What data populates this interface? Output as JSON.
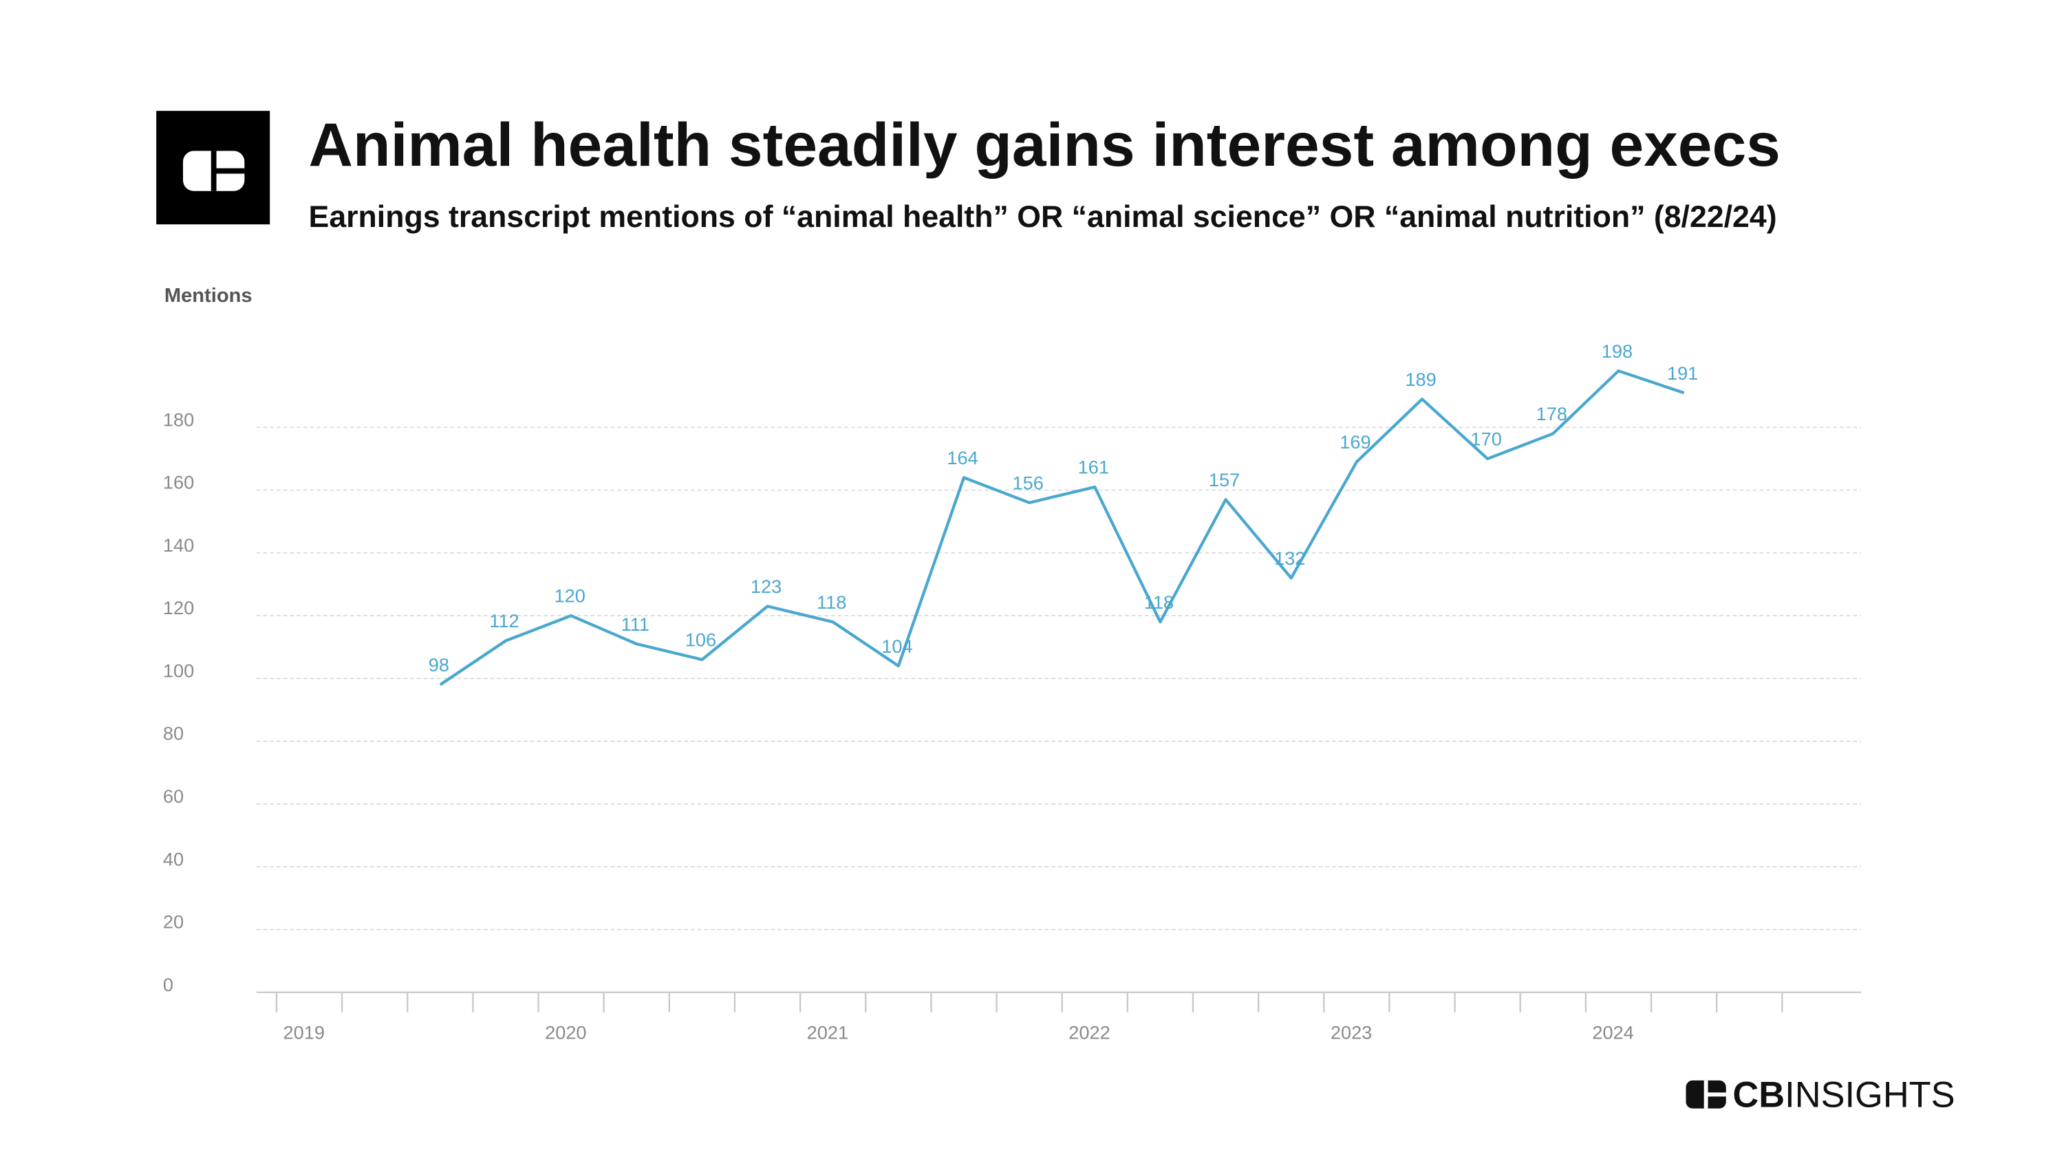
{
  "chart_data": {
    "type": "line",
    "title": "Animal health steadily gains interest among execs",
    "subtitle": "Earnings transcript mentions of “animal health” OR “animal science” OR “animal nutrition” (8/22/24)",
    "y_label": "Mentions",
    "categories": [
      "2019",
      null,
      null,
      null,
      "2020",
      null,
      null,
      null,
      "2021",
      null,
      null,
      null,
      "2022",
      null,
      null,
      null,
      "2023",
      null,
      null,
      null,
      "2024",
      null,
      null,
      null
    ],
    "values": [
      null,
      null,
      98,
      112,
      120,
      111,
      106,
      123,
      118,
      104,
      164,
      156,
      161,
      118,
      157,
      132,
      169,
      189,
      170,
      178,
      198,
      191,
      null,
      null
    ],
    "color": "#4aa7cf",
    "ylim": [
      0,
      200
    ],
    "yticks": [
      0,
      20,
      40,
      60,
      80,
      100,
      120,
      140,
      160,
      180
    ],
    "grid": true
  },
  "brand": {
    "strong": "CB",
    "rest": "INSIGHTS"
  }
}
